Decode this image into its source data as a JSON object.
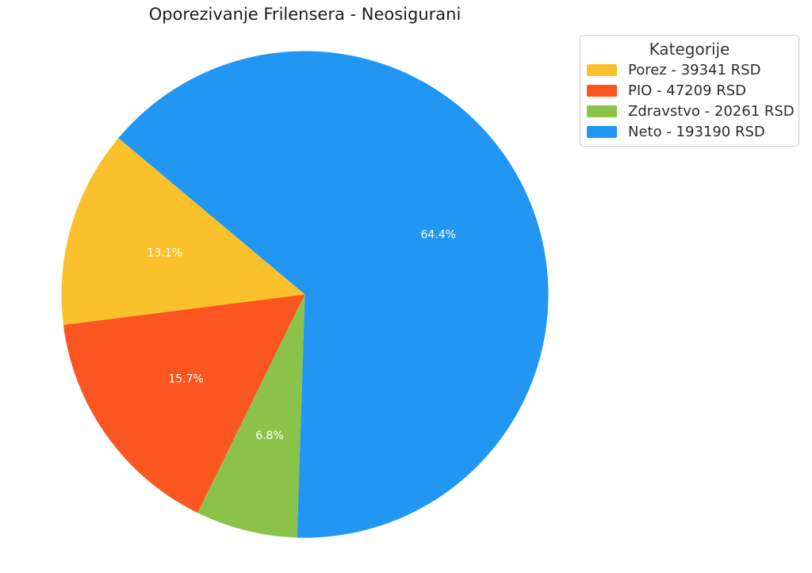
{
  "chart_data": {
    "type": "pie",
    "title": "Oporezivanje Frilensera - Neosigurani",
    "legend": {
      "title": "Kategorije",
      "position": "upper right",
      "entries": [
        "Porez - 39341 RSD",
        "PIO - 47209 RSD",
        "Zdravstvo - 20261 RSD",
        "Neto - 193190 RSD"
      ]
    },
    "slices": [
      {
        "label": "Porez",
        "value": 39341,
        "unit": "RSD",
        "pct_label": "13.1%",
        "color": "#FBC12D",
        "legend_label": "Porez - 39341 RSD"
      },
      {
        "label": "PIO",
        "value": 47209,
        "unit": "RSD",
        "pct_label": "15.7%",
        "color": "#FB5620",
        "legend_label": "PIO - 47209 RSD"
      },
      {
        "label": "Zdravstvo",
        "value": 20261,
        "unit": "RSD",
        "pct_label": "6.8%",
        "color": "#8BC34A",
        "legend_label": "Zdravstvo - 20261 RSD"
      },
      {
        "label": "Neto",
        "value": 193190,
        "unit": "RSD",
        "pct_label": "64.4%",
        "color": "#2196F3",
        "legend_label": "Neto - 193190 RSD"
      }
    ],
    "start_angle": 140,
    "counterclock": true,
    "pct_distance": 0.6,
    "pct_label_color": "#FFFFFF",
    "background_color": "#FFFFFF"
  }
}
